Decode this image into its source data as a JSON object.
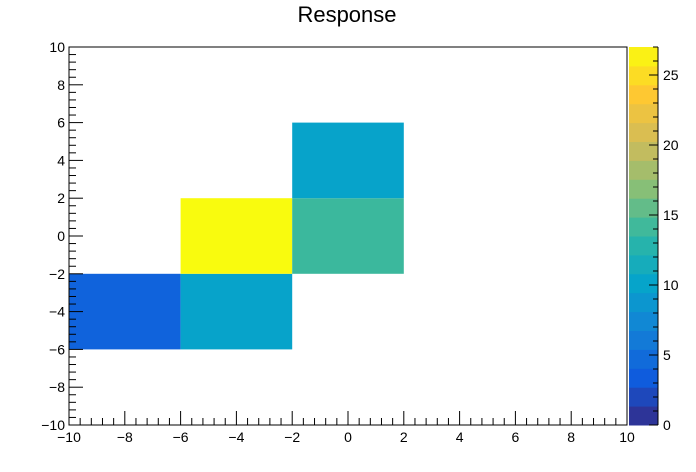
{
  "chart_data": {
    "type": "heatmap",
    "title": "Response",
    "xlabel": "",
    "ylabel": "",
    "xlim": [
      -10,
      10
    ],
    "ylim": [
      -10,
      10
    ],
    "x_ticks": [
      -10,
      -8,
      -6,
      -4,
      -2,
      0,
      2,
      4,
      6,
      8,
      10
    ],
    "y_ticks": [
      -10,
      -8,
      -6,
      -4,
      -2,
      0,
      2,
      4,
      6,
      8,
      10
    ],
    "x_tick_labels": [
      "−10",
      "−8",
      "−6",
      "−4",
      "−2",
      "0",
      "2",
      "4",
      "6",
      "8",
      "10"
    ],
    "y_tick_labels": [
      "−10",
      "−8",
      "−6",
      "−4",
      "−2",
      "0",
      "2",
      "4",
      "6",
      "8",
      "10"
    ],
    "cells": [
      {
        "x": [
          -10,
          -6
        ],
        "y": [
          -6,
          -2
        ],
        "value": 4
      },
      {
        "x": [
          -6,
          -2
        ],
        "y": [
          -6,
          -2
        ],
        "value": 10
      },
      {
        "x": [
          -6,
          -2
        ],
        "y": [
          -2,
          2
        ],
        "value": 27
      },
      {
        "x": [
          -2,
          2
        ],
        "y": [
          -2,
          2
        ],
        "value": 14
      },
      {
        "x": [
          -2,
          2
        ],
        "y": [
          2,
          6
        ],
        "value": 10
      }
    ],
    "colorbar": {
      "range": [
        0,
        27
      ],
      "ticks": [
        0,
        5,
        10,
        15,
        20,
        25
      ],
      "tick_labels": [
        "0",
        "5",
        "10",
        "15",
        "20",
        "25"
      ],
      "colors": [
        "#352a87",
        "#0f5cdd",
        "#1481d6",
        "#06a4ca",
        "#2eb7a4",
        "#87bf77",
        "#d1bb59",
        "#fec832",
        "#f9fb0e"
      ]
    },
    "grid": false,
    "legend": "none"
  }
}
